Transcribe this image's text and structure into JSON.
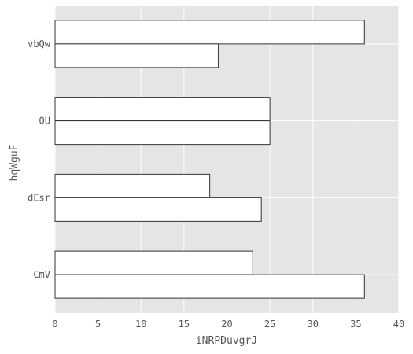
{
  "chart_data": {
    "type": "bar",
    "orientation": "horizontal",
    "title": "",
    "xlabel": "iNRPDuvgrJ",
    "ylabel": "hqWguF",
    "categories": [
      "vbQw",
      "OU",
      "dEsr",
      "CmV"
    ],
    "series": [
      {
        "values": [
          36,
          25,
          18,
          23
        ]
      },
      {
        "values": [
          19,
          25,
          24,
          36
        ]
      }
    ],
    "xlim": [
      0,
      40
    ],
    "xticks": [
      0,
      5,
      10,
      15,
      20,
      25,
      30,
      35,
      40
    ],
    "grid": true,
    "legend": "none",
    "colors": {
      "plot_background": "#e5e5e5",
      "grid": "#ffffff",
      "bar_fill": "#ffffff",
      "bar_stroke": "#333333",
      "text": "#555555"
    }
  }
}
